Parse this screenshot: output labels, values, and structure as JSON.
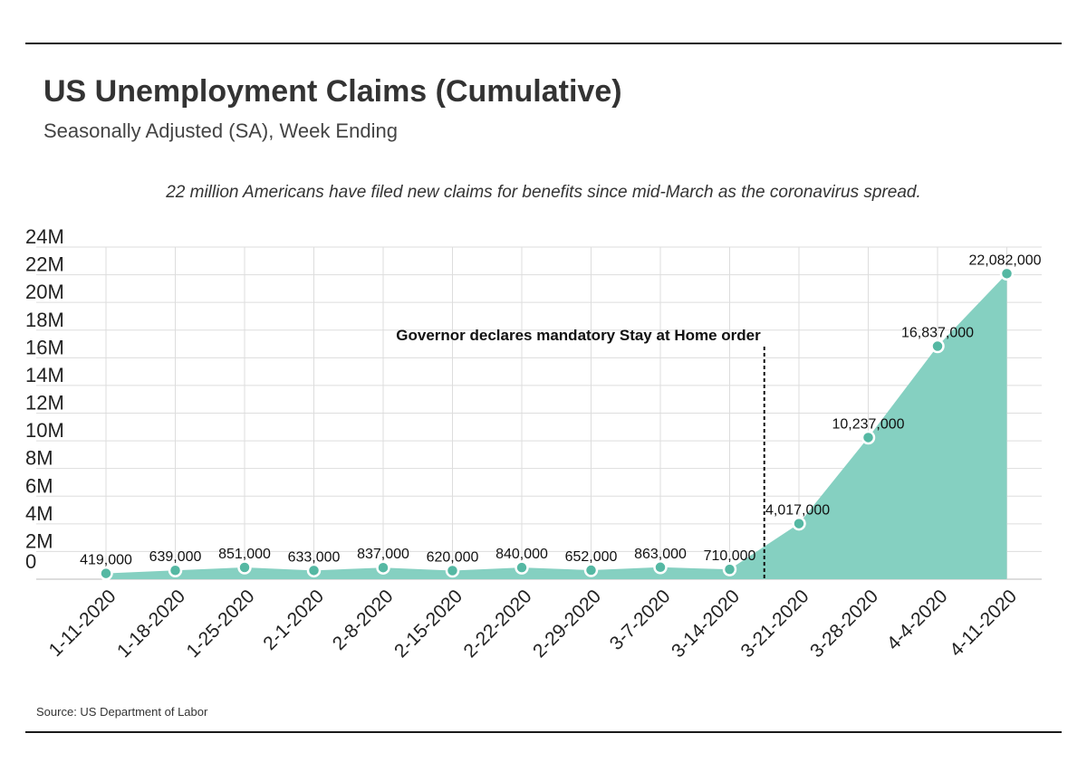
{
  "header": {
    "title": "US Unemployment Claims (Cumulative)",
    "subtitle": "Seasonally Adjusted (SA), Week Ending"
  },
  "caption": "22 million Americans have filed new claims for benefits since mid-March as the coronavirus spread.",
  "source": "Source: US Department of Labor",
  "colors": {
    "area": "#85d0c1",
    "point": "#55b8a3",
    "grid": "#dddddd",
    "rule": "#1a1a1a"
  },
  "chart_data": {
    "type": "area",
    "title": "US Unemployment Claims (Cumulative)",
    "subtitle": "Seasonally Adjusted (SA), Week Ending",
    "categories": [
      "1-11-2020",
      "1-18-2020",
      "1-25-2020",
      "2-1-2020",
      "2-8-2020",
      "2-15-2020",
      "2-22-2020",
      "2-29-2020",
      "3-7-2020",
      "3-14-2020",
      "3-21-2020",
      "3-28-2020",
      "4-4-2020",
      "4-11-2020"
    ],
    "values": [
      419000,
      639000,
      851000,
      633000,
      837000,
      620000,
      840000,
      652000,
      863000,
      710000,
      4017000,
      10237000,
      16837000,
      22082000
    ],
    "data_labels": [
      "419,000",
      "639,000",
      "851,000",
      "633,000",
      "837,000",
      "620,000",
      "840,000",
      "652,000",
      "863,000",
      "710,000",
      "4,017,000",
      "10,237,000",
      "16,837,000",
      "22,082,000"
    ],
    "y_ticks": [
      "0",
      "2M",
      "4M",
      "6M",
      "8M",
      "10M",
      "12M",
      "14M",
      "16M",
      "18M",
      "20M",
      "22M",
      "24M"
    ],
    "ylim": [
      0,
      24000000
    ],
    "grid": true,
    "annotation": {
      "text": "Governor declares mandatory Stay at Home order",
      "between": [
        "3-14-2020",
        "3-21-2020"
      ]
    }
  }
}
